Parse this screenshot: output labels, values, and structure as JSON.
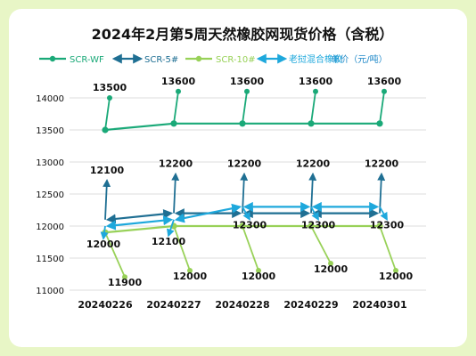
{
  "chart_data": {
    "type": "line",
    "title": "2024年2月第5周天然橡胶网现货价格（含税）",
    "categories": [
      "20240226",
      "20240227",
      "20240228",
      "20240229",
      "20240301"
    ],
    "ylim": [
      11000,
      14000
    ],
    "yticks": [
      11000,
      11500,
      12000,
      12500,
      13000,
      13500,
      14000
    ],
    "ytick_labels": [
      "11000",
      "11500",
      "12000",
      "12500",
      "13000",
      "13500",
      "14000"
    ],
    "grid": "horizontal",
    "legend_position": "top",
    "series": [
      {
        "name": "SCR-WF",
        "color": "#1aa978",
        "values": [
          13500,
          13600,
          13600,
          13600,
          13600
        ],
        "labels": [
          "13500",
          "13600",
          "13600",
          "13600",
          "13600"
        ]
      },
      {
        "name": "SCR-5#",
        "color": "#1f6f93",
        "values": [
          12100,
          12200,
          12200,
          12200,
          12200
        ],
        "labels": [
          "12100",
          "12200",
          "12200",
          "12200",
          "12200"
        ]
      },
      {
        "name": "SCR-10#",
        "color": "#98d158",
        "values": [
          11900,
          12000,
          12000,
          12000,
          12000
        ],
        "labels": [
          "11900",
          "12000",
          "12000",
          "12000",
          "12000"
        ]
      },
      {
        "name": "老挝混合橡胶",
        "color": "#1ea8dc",
        "values": [
          12000,
          12100,
          12300,
          12300,
          12300
        ],
        "labels": [
          "12000",
          "12100",
          "12300",
          "12300",
          "12300"
        ]
      }
    ],
    "legend_unit": "单价（元/吨）"
  }
}
